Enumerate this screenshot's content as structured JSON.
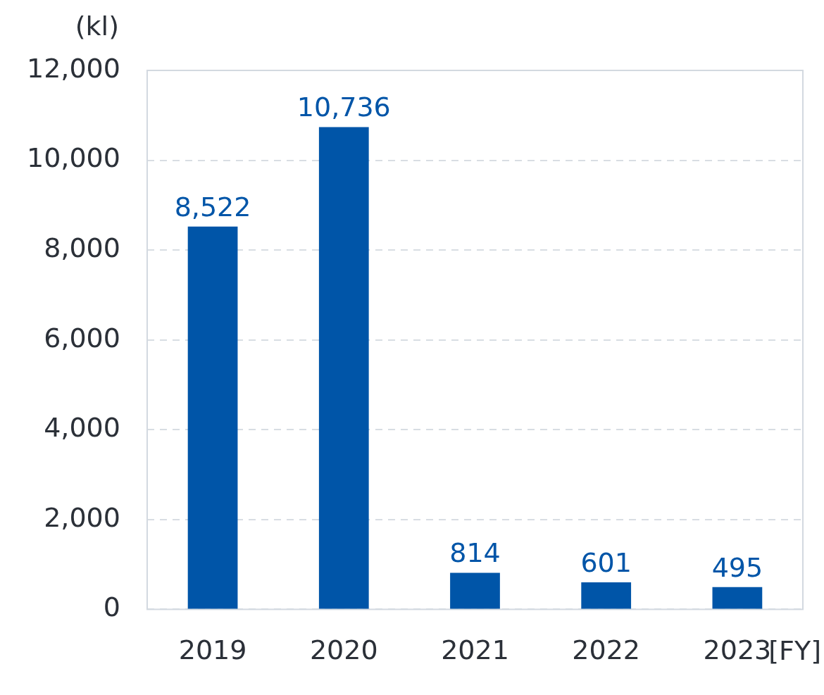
{
  "chart_data": {
    "type": "bar",
    "categories": [
      "2019",
      "2020",
      "2021",
      "2022",
      "2023"
    ],
    "values": [
      8522,
      10736,
      814,
      601,
      495
    ],
    "value_labels": [
      "8,522",
      "10,736",
      "814",
      "601",
      "495"
    ],
    "color": "#0055a8",
    "y_label": "(kl)",
    "x_label": "[FY]",
    "ylim": [
      0,
      12000
    ],
    "yticks": [
      0,
      {
        "value": 2000,
        "label": "2,000"
      },
      {
        "value": 4000,
        "label": "4,000"
      },
      {
        "value": 6000,
        "label": "6,000"
      },
      {
        "value": 8000,
        "label": "8,000"
      },
      {
        "value": 10000,
        "label": "10,000"
      },
      {
        "value": 12000,
        "label": "12,000"
      }
    ],
    "grid": true,
    "data_labels": true
  }
}
